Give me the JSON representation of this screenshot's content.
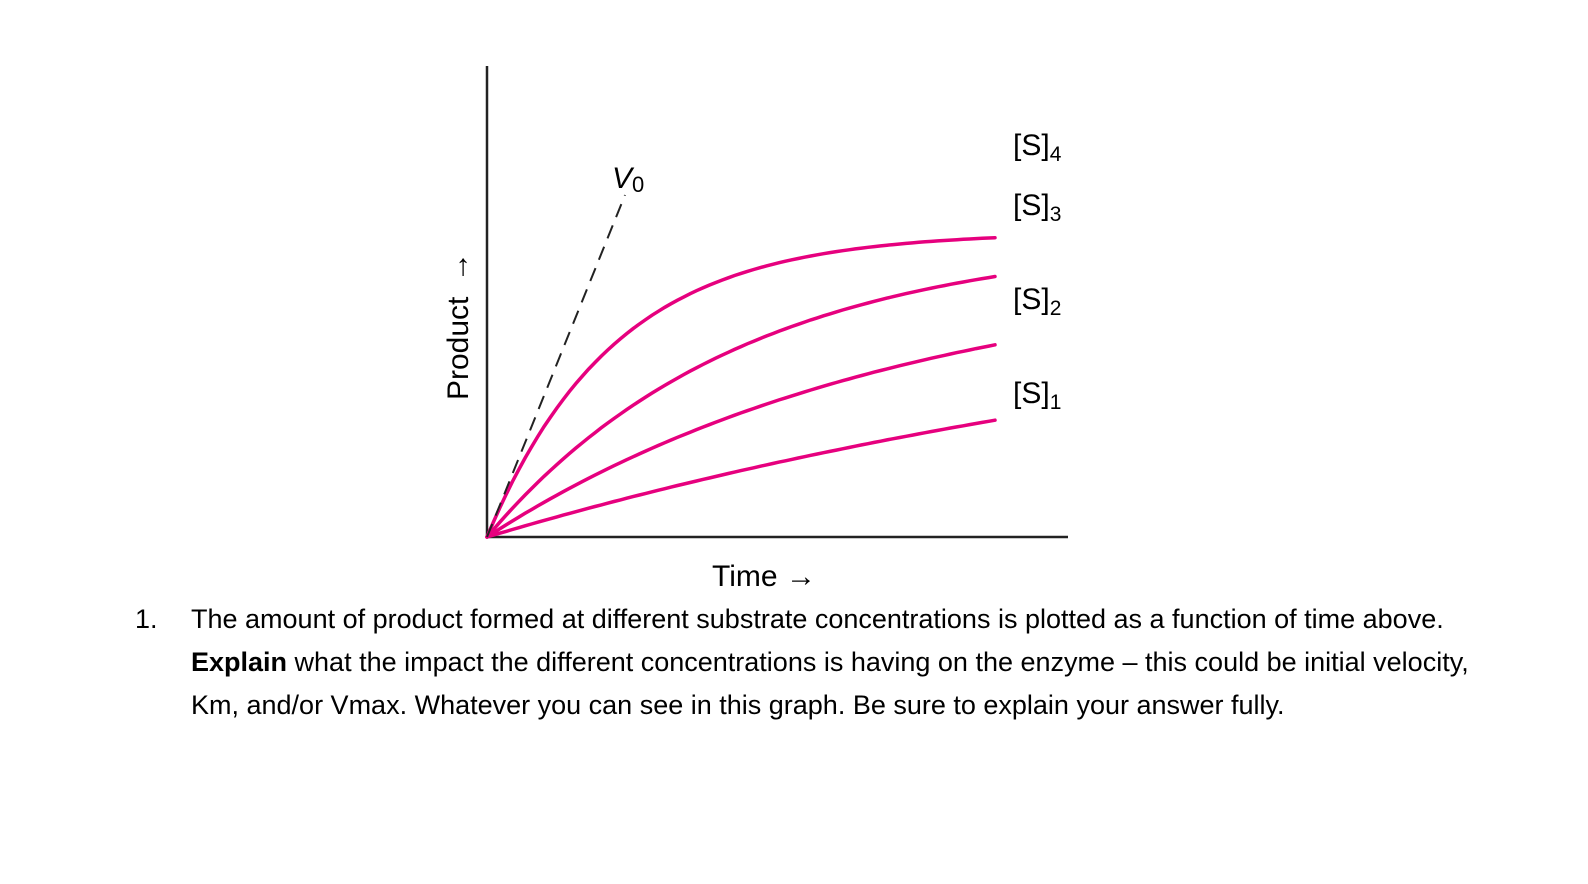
{
  "chart_data": {
    "type": "line",
    "xlabel": "Time",
    "ylabel": "Product",
    "x_arrow": "→",
    "y_arrow": "→",
    "tangent_label": "V",
    "tangent_subscript": "0",
    "color": "#e6007e",
    "series": [
      {
        "name": "[S]",
        "subscript": "4",
        "level": 0.76,
        "rate": 4.0
      },
      {
        "name": "[S]",
        "subscript": "3",
        "level": 0.78,
        "rate": 2.0
      },
      {
        "name": "[S]",
        "subscript": "2",
        "level": 0.8,
        "rate": 1.2
      },
      {
        "name": "[S]",
        "subscript": "1",
        "level": 0.8,
        "rate": 0.55
      }
    ]
  },
  "question": {
    "number": "1.",
    "text_before": "The amount of product formed at different substrate concentrations is plotted as a function of time above. ",
    "bold": "Explain",
    "text_after": " what the impact the different concentrations is having on the enzyme – this could be initial velocity, Km, and/or Vmax. Whatever you can see in this graph. Be sure to explain your answer fully."
  }
}
